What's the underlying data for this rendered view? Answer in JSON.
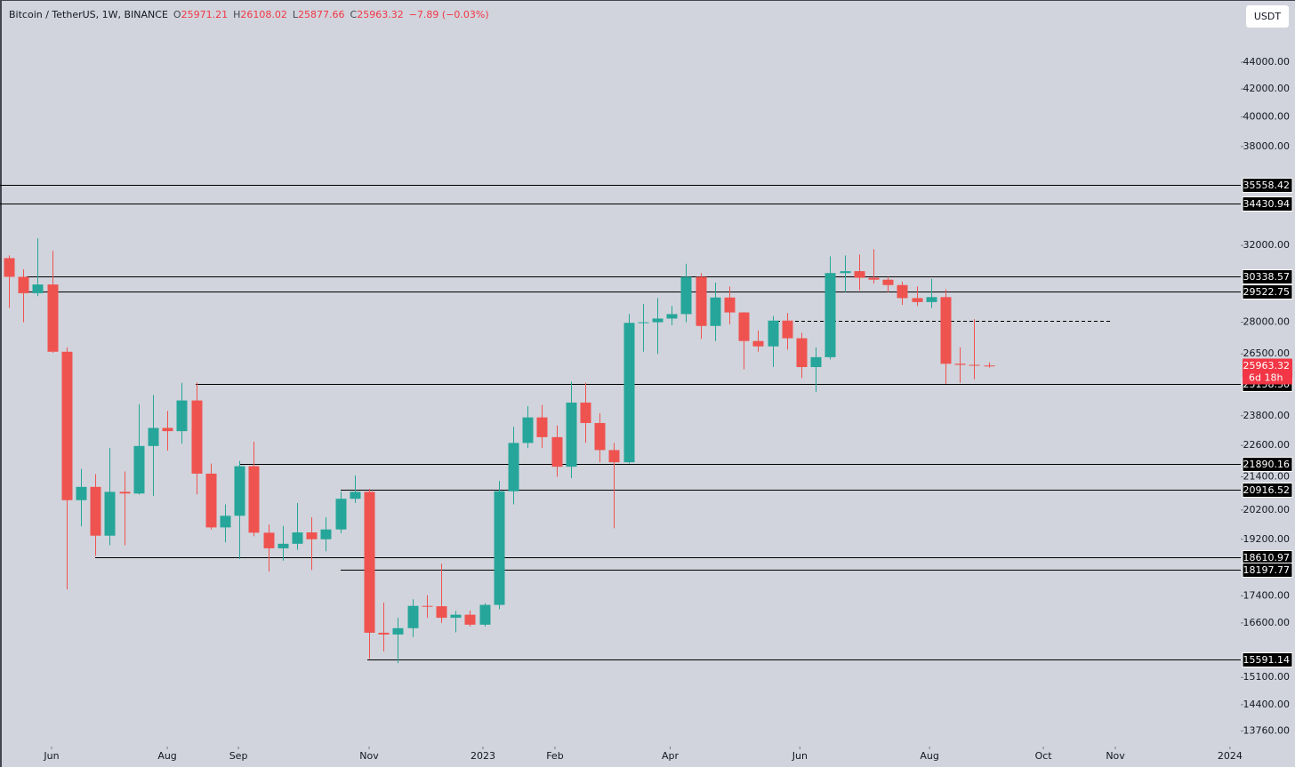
{
  "chart_data": {
    "type": "candlestick",
    "header": {
      "symbol": "Bitcoin / TetherUS, 1W, BINANCE",
      "o_label": "O",
      "o": 25971.21,
      "h_label": "H",
      "h": 26108.02,
      "l_label": "L",
      "l": 25877.66,
      "c_label": "C",
      "c": 25963.32,
      "change": "−7.89 (−0.03%)"
    },
    "currency": "USDT",
    "log_scale": true,
    "up_color": "#26a69a",
    "down_color": "#ef5350",
    "open": [
      31300,
      30300,
      29450,
      29900,
      26600,
      20550,
      21030,
      19320,
      20850,
      20790,
      22580,
      23300,
      23170,
      24440,
      21520,
      19600,
      20000,
      21800,
      19420,
      18900,
      19050,
      19430,
      19200,
      19530,
      20600,
      20850,
      16320,
      16270,
      16450,
      17100,
      17090,
      16750,
      16840,
      16550,
      17130,
      20870,
      22700,
      23730,
      22930,
      21780,
      24350,
      23500,
      22420,
      21950,
      27970,
      28000,
      28180,
      28400,
      30300,
      27820,
      29230,
      28480,
      27100,
      26850,
      28080,
      27230,
      25900,
      26350,
      30500,
      30600,
      30250,
      30150,
      29870,
      29200,
      29000,
      29250,
      26050,
      26000,
      25971.21
    ],
    "high": [
      31450,
      30700,
      32400,
      31700,
      26800,
      21700,
      21500,
      22500,
      21600,
      24280,
      24670,
      24000,
      25200,
      25210,
      21900,
      20400,
      22000,
      22750,
      19700,
      19650,
      20450,
      19950,
      19950,
      20850,
      21450,
      20950,
      17200,
      16750,
      17300,
      17420,
      18400,
      16950,
      16960,
      17180,
      21250,
      23350,
      24200,
      24250,
      23400,
      25250,
      25200,
      23900,
      22700,
      28400,
      28900,
      29200,
      28800,
      31000,
      30500,
      30000,
      29800,
      28500,
      27600,
      28300,
      28450,
      27500,
      26800,
      31400,
      31450,
      31500,
      31800,
      30300,
      30050,
      29800,
      30200,
      29650,
      26800,
      28150,
      26108.02
    ],
    "low": [
      28700,
      28000,
      29300,
      26550,
      17600,
      19640,
      18650,
      19000,
      19000,
      20750,
      20700,
      22400,
      22670,
      20760,
      19530,
      19100,
      18550,
      19300,
      18150,
      18500,
      18850,
      18200,
      18800,
      19400,
      20450,
      15590,
      15800,
      15480,
      16200,
      16750,
      16600,
      16330,
      16500,
      16500,
      17000,
      20400,
      22500,
      22500,
      21400,
      21350,
      22700,
      21950,
      19570,
      21900,
      26600,
      26500,
      27850,
      28000,
      27200,
      27100,
      27900,
      25800,
      26600,
      25900,
      26700,
      25400,
      24800,
      26250,
      29500,
      29600,
      29950,
      29500,
      28860,
      28800,
      28700,
      25150,
      25200,
      25350,
      25877.66
    ],
    "close": [
      30300,
      29450,
      29900,
      26600,
      20550,
      21030,
      19320,
      20850,
      20790,
      22580,
      23300,
      23170,
      24440,
      21520,
      19600,
      20000,
      21800,
      19420,
      18900,
      19050,
      19430,
      19200,
      19530,
      20600,
      20850,
      16320,
      16270,
      16450,
      17100,
      17090,
      16750,
      16840,
      16550,
      17130,
      20870,
      22700,
      23730,
      22930,
      21780,
      24350,
      23500,
      22420,
      21950,
      27970,
      28000,
      28180,
      28400,
      30300,
      27820,
      29230,
      28480,
      27100,
      26850,
      28080,
      27230,
      25900,
      26350,
      30500,
      30600,
      30250,
      30150,
      29870,
      29200,
      29000,
      29250,
      26050,
      26000,
      25971.21,
      25963.32
    ],
    "xlim": [
      -0.62,
      85.5
    ],
    "xticks": [
      {
        "value": 2.96,
        "label": "Jun"
      },
      {
        "value": 10.99,
        "label": "Aug"
      },
      {
        "value": 15.93,
        "label": "Sep"
      },
      {
        "value": 25.0,
        "label": "Nov"
      },
      {
        "value": 32.9,
        "label": "2023"
      },
      {
        "value": 37.9,
        "label": "Feb"
      },
      {
        "value": 45.9,
        "label": "Apr"
      },
      {
        "value": 54.9,
        "label": "Jun"
      },
      {
        "value": 63.9,
        "label": "Aug"
      },
      {
        "value": 71.8,
        "label": "Oct"
      },
      {
        "value": 76.8,
        "label": "Nov"
      },
      {
        "value": 84.75,
        "label": "2024"
      }
    ],
    "ylim": [
      13390,
      49030
    ],
    "yticks": [
      {
        "value": 44000,
        "label": "44000.00"
      },
      {
        "value": 42000,
        "label": "42000.00"
      },
      {
        "value": 40000,
        "label": "40000.00"
      },
      {
        "value": 38000,
        "label": "38000.00"
      },
      {
        "value": 32000,
        "label": "32000.00"
      },
      {
        "value": 28000,
        "label": "28000.00"
      },
      {
        "value": 26500,
        "label": "26500.00"
      },
      {
        "value": 23800,
        "label": "23800.00"
      },
      {
        "value": 22600,
        "label": "22600.00"
      },
      {
        "value": 21400,
        "label": "21400.00"
      },
      {
        "value": 20200,
        "label": "20200.00"
      },
      {
        "value": 19200,
        "label": "19200.00"
      },
      {
        "value": 17400,
        "label": "17400.00"
      },
      {
        "value": 16600,
        "label": "16600.00"
      },
      {
        "value": 15100,
        "label": "15100.00"
      },
      {
        "value": 14400,
        "label": "14400.00"
      },
      {
        "value": 13760,
        "label": "13760.00"
      }
    ],
    "levels": [
      35558.42,
      34430.94,
      30338.57,
      29522.75,
      {
        "value": 25158.3,
        "label": "25158.30"
      },
      21890.16,
      20916.52,
      18610.97,
      18197.77,
      15591.14
    ],
    "dashed_level": 28050,
    "last_price": 25963.32,
    "countdown": "6d 18h"
  }
}
